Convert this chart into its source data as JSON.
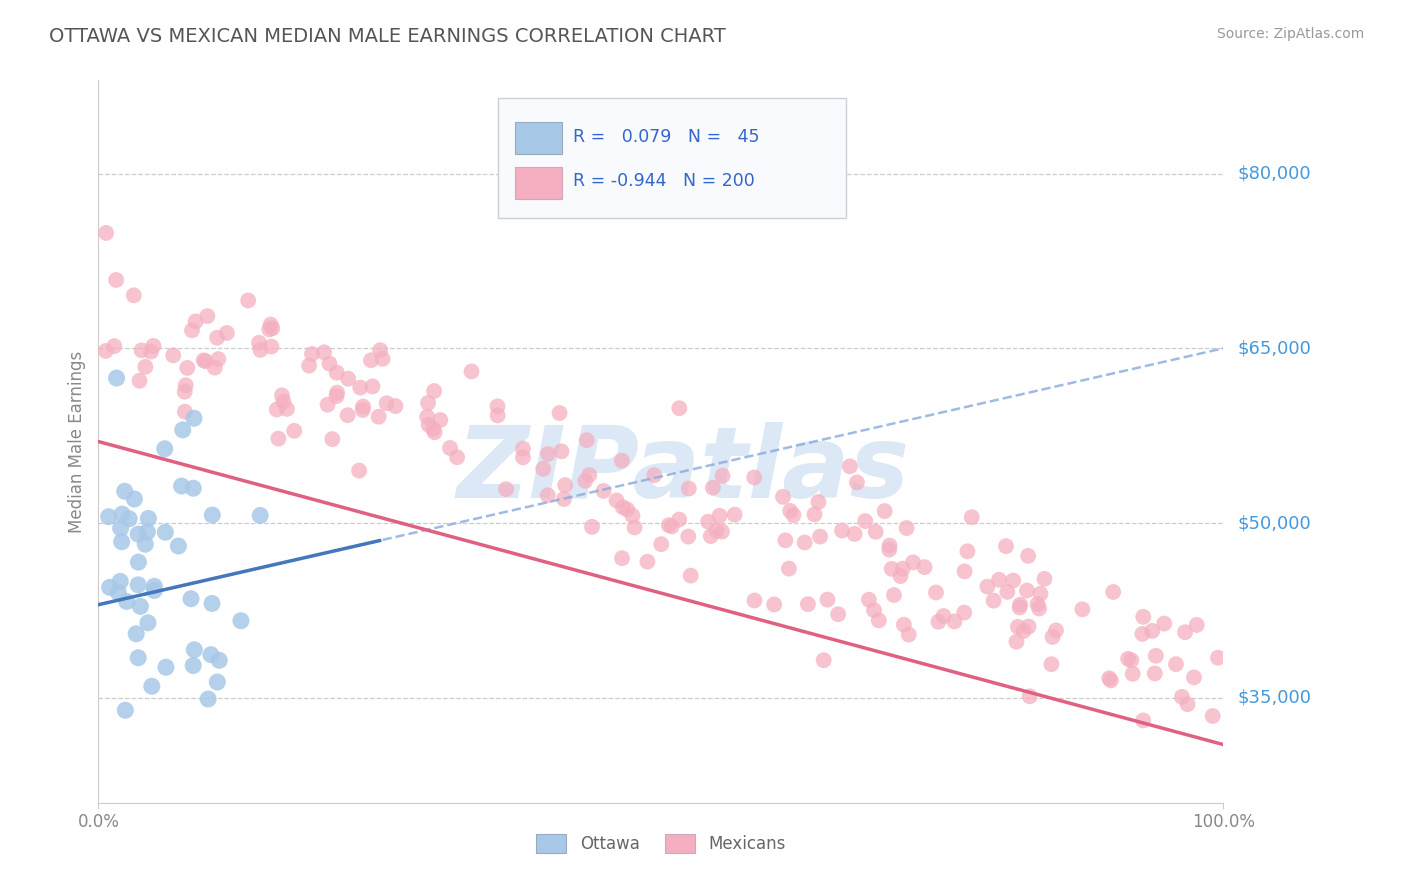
{
  "title": "OTTAWA VS MEXICAN MEDIAN MALE EARNINGS CORRELATION CHART",
  "source": "Source: ZipAtlas.com",
  "ylabel": "Median Male Earnings",
  "xlim": [
    0.0,
    100.0
  ],
  "ylim": [
    26000,
    88000
  ],
  "yticks": [
    35000,
    50000,
    65000,
    80000
  ],
  "ytick_labels": [
    "$35,000",
    "$50,000",
    "$65,000",
    "$80,000"
  ],
  "ottawa_R": 0.079,
  "ottawa_N": 45,
  "mexican_R": -0.944,
  "mexican_N": 200,
  "ottawa_color": "#a8c8e8",
  "mexican_color": "#f5afc0",
  "ottawa_solid_color": "#4477bb",
  "ottawa_dash_color": "#88aadd",
  "mexican_line_color": "#e06080",
  "trend_label_color": "#3366cc",
  "axis_label_color": "#4499dd",
  "background_color": "#ffffff",
  "watermark_text": "ZIPatlas",
  "watermark_color": "#dce8f5",
  "title_color": "#555555",
  "title_fontsize": 14,
  "ottawa_seed": 42,
  "mexican_seed": 99
}
